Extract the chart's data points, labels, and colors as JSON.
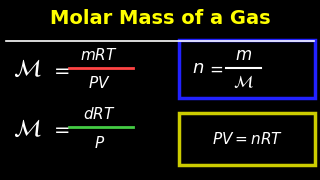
{
  "title": "Molar Mass of a Gas",
  "title_color": "#FFFF00",
  "title_underline_color": "#FFFFFF",
  "background_color": "#000000",
  "formula_color": "#FFFFFF",
  "eq1_numerator_line_color": "#FF4444",
  "eq2_numerator_line_color": "#44CC44",
  "box1_border_color": "#2222FF",
  "box2_border_color": "#CCCC00",
  "figsize": [
    3.2,
    1.8
  ],
  "dpi": 100
}
